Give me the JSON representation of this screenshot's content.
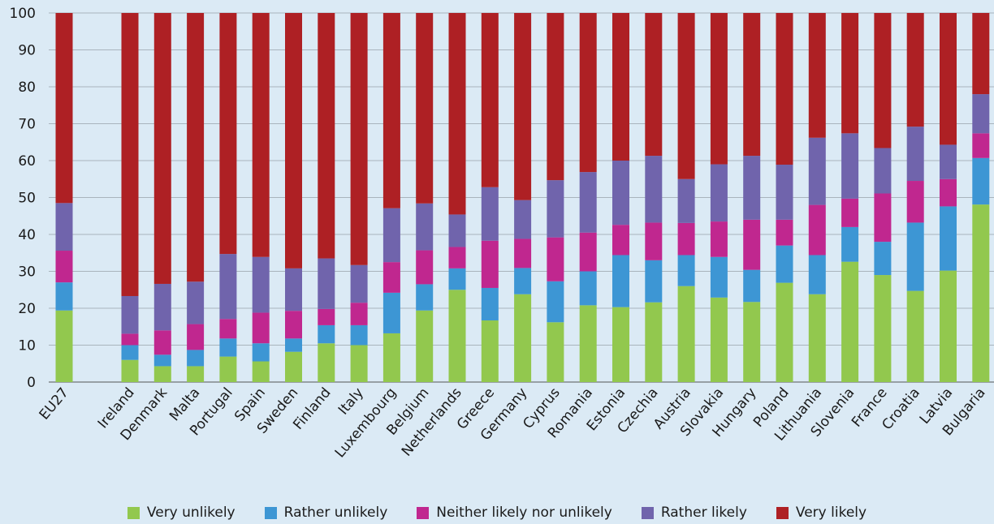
{
  "chart_data": {
    "type": "bar",
    "stacked": true,
    "orientation": "vertical",
    "categories": [
      "EU27",
      "Ireland",
      "Denmark",
      "Malta",
      "Portugal",
      "Spain",
      "Sweden",
      "Finland",
      "Italy",
      "Luxembourg",
      "Belgium",
      "Netherlands",
      "Greece",
      "Germany",
      "Cyprus",
      "Romania",
      "Estonia",
      "Czechia",
      "Austria",
      "Slovakia",
      "Hungary",
      "Poland",
      "Lithuania",
      "Slovenia",
      "France",
      "Croatia",
      "Latvia",
      "Bulgaria"
    ],
    "series": [
      {
        "name": "Very unlikely",
        "color": "#92c84e",
        "values": [
          19.4,
          6.0,
          4.3,
          4.3,
          6.9,
          5.6,
          8.2,
          10.5,
          10.0,
          13.2,
          19.4,
          25.0,
          16.7,
          23.8,
          16.2,
          20.8,
          20.3,
          21.6,
          26.0,
          22.9,
          21.7,
          26.9,
          23.8,
          32.6,
          29.0,
          24.7,
          30.2,
          48.1
        ]
      },
      {
        "name": "Rather unlikely",
        "color": "#3d96d4",
        "values": [
          7.6,
          4.0,
          3.1,
          4.4,
          4.9,
          4.9,
          3.6,
          4.9,
          5.4,
          11.0,
          7.1,
          5.8,
          8.8,
          7.1,
          11.1,
          9.2,
          14.1,
          11.4,
          8.4,
          11.0,
          8.7,
          10.1,
          10.6,
          9.4,
          9.0,
          18.5,
          17.4,
          12.6
        ]
      },
      {
        "name": "Neither likely nor unlikely",
        "color": "#c0278f",
        "values": [
          8.6,
          3.1,
          6.6,
          7.0,
          5.3,
          8.3,
          7.5,
          4.4,
          6.1,
          8.3,
          9.2,
          5.8,
          12.8,
          7.9,
          11.9,
          10.5,
          8.2,
          10.2,
          8.7,
          9.6,
          13.6,
          7.0,
          13.6,
          7.7,
          13.1,
          11.3,
          7.4,
          6.7
        ]
      },
      {
        "name": "Rather likely",
        "color": "#7064ac",
        "values": [
          12.9,
          10.2,
          12.6,
          11.5,
          17.6,
          15.1,
          11.5,
          13.7,
          10.2,
          14.6,
          12.7,
          8.8,
          14.5,
          10.5,
          15.5,
          16.4,
          17.4,
          18.1,
          11.9,
          15.5,
          17.3,
          14.9,
          18.2,
          17.7,
          12.3,
          14.7,
          9.3,
          10.6
        ]
      },
      {
        "name": "Very likely",
        "color": "#ae2024",
        "values": [
          51.5,
          76.7,
          73.4,
          72.8,
          65.3,
          66.1,
          69.2,
          66.5,
          68.3,
          52.9,
          51.6,
          54.6,
          47.2,
          50.7,
          45.3,
          43.1,
          40.0,
          38.7,
          45.0,
          41.0,
          38.7,
          41.1,
          33.8,
          32.6,
          36.6,
          30.8,
          35.7,
          22.0
        ]
      }
    ],
    "xlabel": "",
    "ylabel": "",
    "title": "",
    "ylim": [
      0,
      100
    ],
    "yticks": [
      0,
      10,
      20,
      30,
      40,
      50,
      60,
      70,
      80,
      90,
      100
    ],
    "grid": true,
    "legend_position": "bottom"
  }
}
